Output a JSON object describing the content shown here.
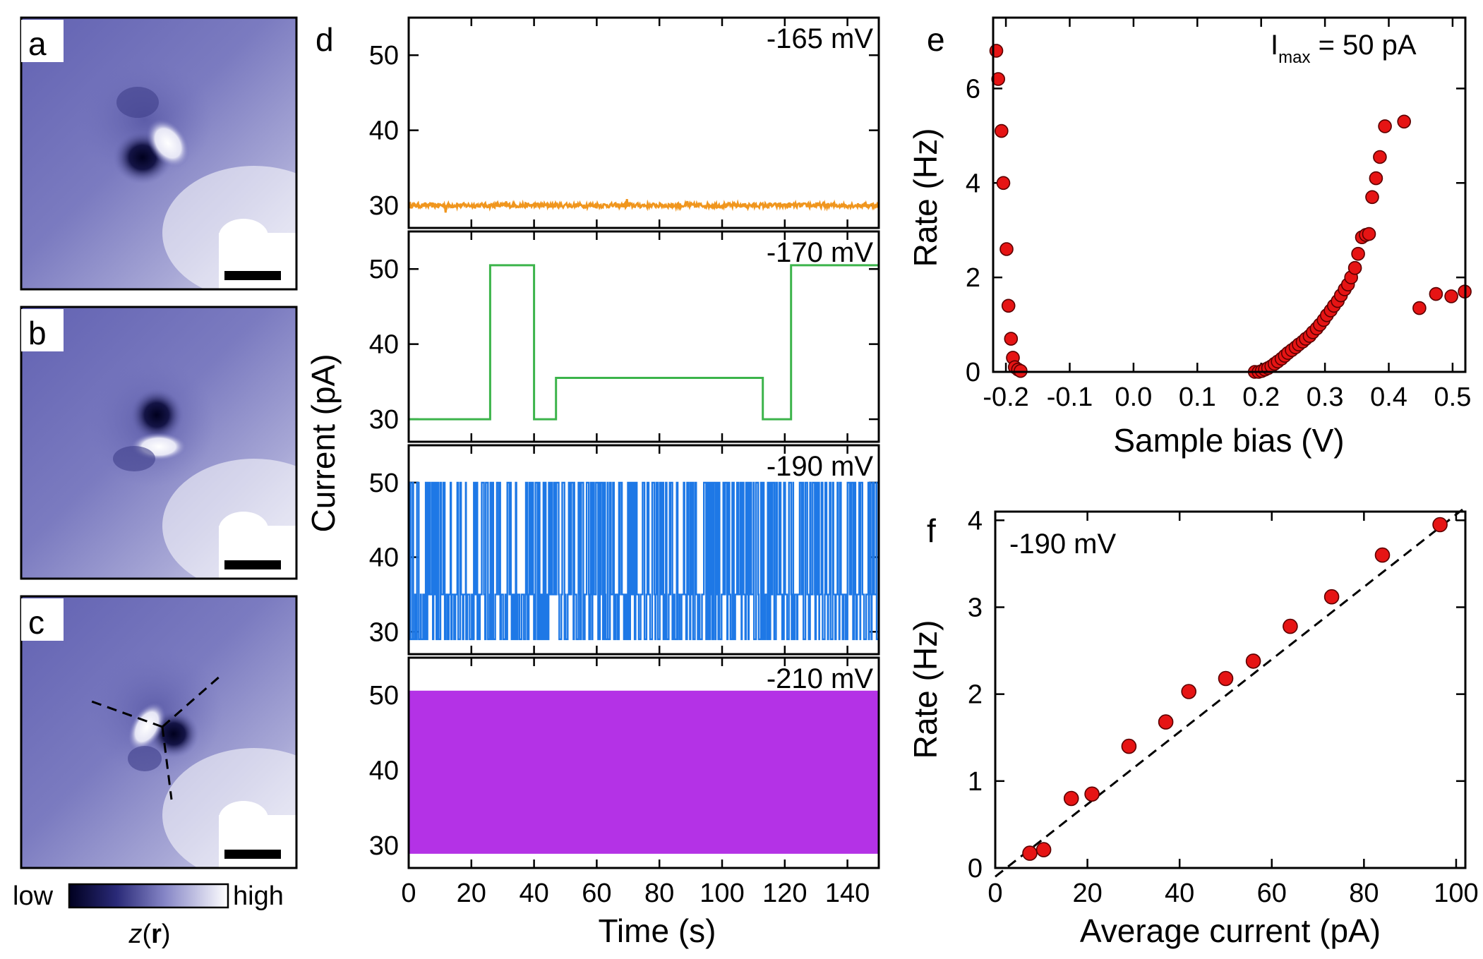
{
  "figure": {
    "panel_labels": {
      "a": "a",
      "b": "b",
      "c": "c",
      "d": "d",
      "e": "e",
      "f": "f"
    },
    "colorbar": {
      "low": "low",
      "high": "high",
      "var": "z",
      "var_arg": "r",
      "paren_open": "(",
      "paren_close": ")"
    }
  },
  "colors": {
    "orange": "#f0961e",
    "green": "#3cb44b",
    "blue": "#1e78e6",
    "purple": "#b432e6",
    "marker": "#e61414",
    "image_low": "#00002a",
    "image_mid": "#6e6eb9",
    "image_high": "#ffffff"
  },
  "chart_data": [
    {
      "id": "d",
      "type": "line",
      "xlabel": "Time (s)",
      "ylabel": "Current (pA)",
      "xlim": [
        0,
        150
      ],
      "ylim": [
        27,
        55
      ],
      "xticks": [
        "0",
        "20",
        "40",
        "60",
        "80",
        "100",
        "120",
        "140"
      ],
      "xtick_values": [
        0,
        20,
        40,
        60,
        80,
        100,
        120,
        140
      ],
      "yticks": [
        "30",
        "40",
        "50"
      ],
      "ytick_values": [
        30,
        40,
        50
      ],
      "series": [
        {
          "name": "-165 mV",
          "label": "-165 mV",
          "color": "#f0961e",
          "style": "noise",
          "level": 30
        },
        {
          "name": "-170 mV",
          "label": "-170 mV",
          "color": "#3cb44b",
          "style": "steps",
          "x": [
            0,
            26,
            26,
            40,
            40,
            47,
            47,
            113,
            113,
            122,
            122,
            150
          ],
          "values": [
            30,
            30,
            50.5,
            50.5,
            30,
            30,
            35.5,
            35.5,
            30,
            30,
            50.5,
            50.5
          ]
        },
        {
          "name": "-190 mV",
          "label": "-190 mV",
          "color": "#1e78e6",
          "style": "telegraph",
          "levels": [
            29,
            35,
            50
          ],
          "switches": 420
        },
        {
          "name": "-210 mV",
          "label": "-210 mV",
          "color": "#b432e6",
          "style": "telegraph",
          "levels": [
            29,
            50.5
          ],
          "switches": 3500
        }
      ]
    },
    {
      "id": "e",
      "type": "scatter",
      "xlabel": "Sample bias (V)",
      "ylabel": "Rate (Hz)",
      "annotation_main": "I",
      "annotation_sub": "max",
      "annotation_rest": " = 50 pA",
      "xlim": [
        -0.22,
        0.52
      ],
      "ylim": [
        0,
        7.5
      ],
      "xticks": [
        "-0.2",
        "-0.1",
        "0.0",
        "0.1",
        "0.2",
        "0.3",
        "0.4",
        "0.5"
      ],
      "xtick_values": [
        -0.2,
        -0.1,
        0.0,
        0.1,
        0.2,
        0.3,
        0.4,
        0.5
      ],
      "yticks": [
        "0",
        "2",
        "4",
        "6"
      ],
      "ytick_values": [
        0,
        2,
        4,
        6
      ],
      "x": [
        -0.215,
        -0.212,
        -0.207,
        -0.204,
        -0.199,
        -0.196,
        -0.192,
        -0.189,
        -0.186,
        -0.181,
        -0.177,
        0.19,
        0.196,
        0.201,
        0.206,
        0.211,
        0.216,
        0.221,
        0.226,
        0.232,
        0.237,
        0.242,
        0.248,
        0.254,
        0.259,
        0.265,
        0.27,
        0.276,
        0.281,
        0.287,
        0.292,
        0.298,
        0.303,
        0.309,
        0.314,
        0.32,
        0.325,
        0.331,
        0.336,
        0.341,
        0.347,
        0.352,
        0.358,
        0.364,
        0.369,
        0.374,
        0.38,
        0.386,
        0.394,
        0.424,
        0.448,
        0.474,
        0.498,
        0.519
      ],
      "values": [
        6.8,
        6.2,
        5.1,
        4.0,
        2.6,
        1.4,
        0.7,
        0.3,
        0.1,
        0.05,
        0.02,
        0.0,
        0.0,
        0.02,
        0.05,
        0.08,
        0.12,
        0.17,
        0.22,
        0.28,
        0.34,
        0.4,
        0.46,
        0.52,
        0.58,
        0.64,
        0.7,
        0.76,
        0.84,
        0.92,
        1.0,
        1.1,
        1.2,
        1.3,
        1.4,
        1.5,
        1.62,
        1.75,
        1.85,
        2.0,
        2.2,
        2.5,
        2.85,
        2.9,
        2.92,
        3.7,
        4.1,
        4.55,
        5.2,
        5.3,
        1.35,
        1.65,
        1.6,
        1.7
      ],
      "note": "scatter points estimated from figure"
    },
    {
      "id": "f",
      "type": "scatter",
      "xlabel": "Average current (pA)",
      "ylabel": "Rate (Hz)",
      "annotation": "-190 mV",
      "xlim": [
        0,
        102
      ],
      "ylim": [
        0,
        4.1
      ],
      "xticks": [
        "0",
        "20",
        "40",
        "60",
        "80",
        "100"
      ],
      "xtick_values": [
        0,
        20,
        40,
        60,
        80,
        100
      ],
      "yticks": [
        "0",
        "1",
        "2",
        "3",
        "4"
      ],
      "ytick_values": [
        0,
        1,
        2,
        3,
        4
      ],
      "x": [
        7.5,
        10.5,
        16.5,
        21,
        29,
        37,
        42,
        50,
        56,
        64,
        73,
        84,
        96.5
      ],
      "values": [
        0.17,
        0.21,
        0.8,
        0.85,
        1.4,
        1.68,
        2.03,
        2.18,
        2.38,
        2.78,
        3.12,
        3.6,
        3.95
      ],
      "fit_x": [
        0,
        102
      ],
      "fit_values": [
        -0.1,
        4.15
      ]
    }
  ]
}
